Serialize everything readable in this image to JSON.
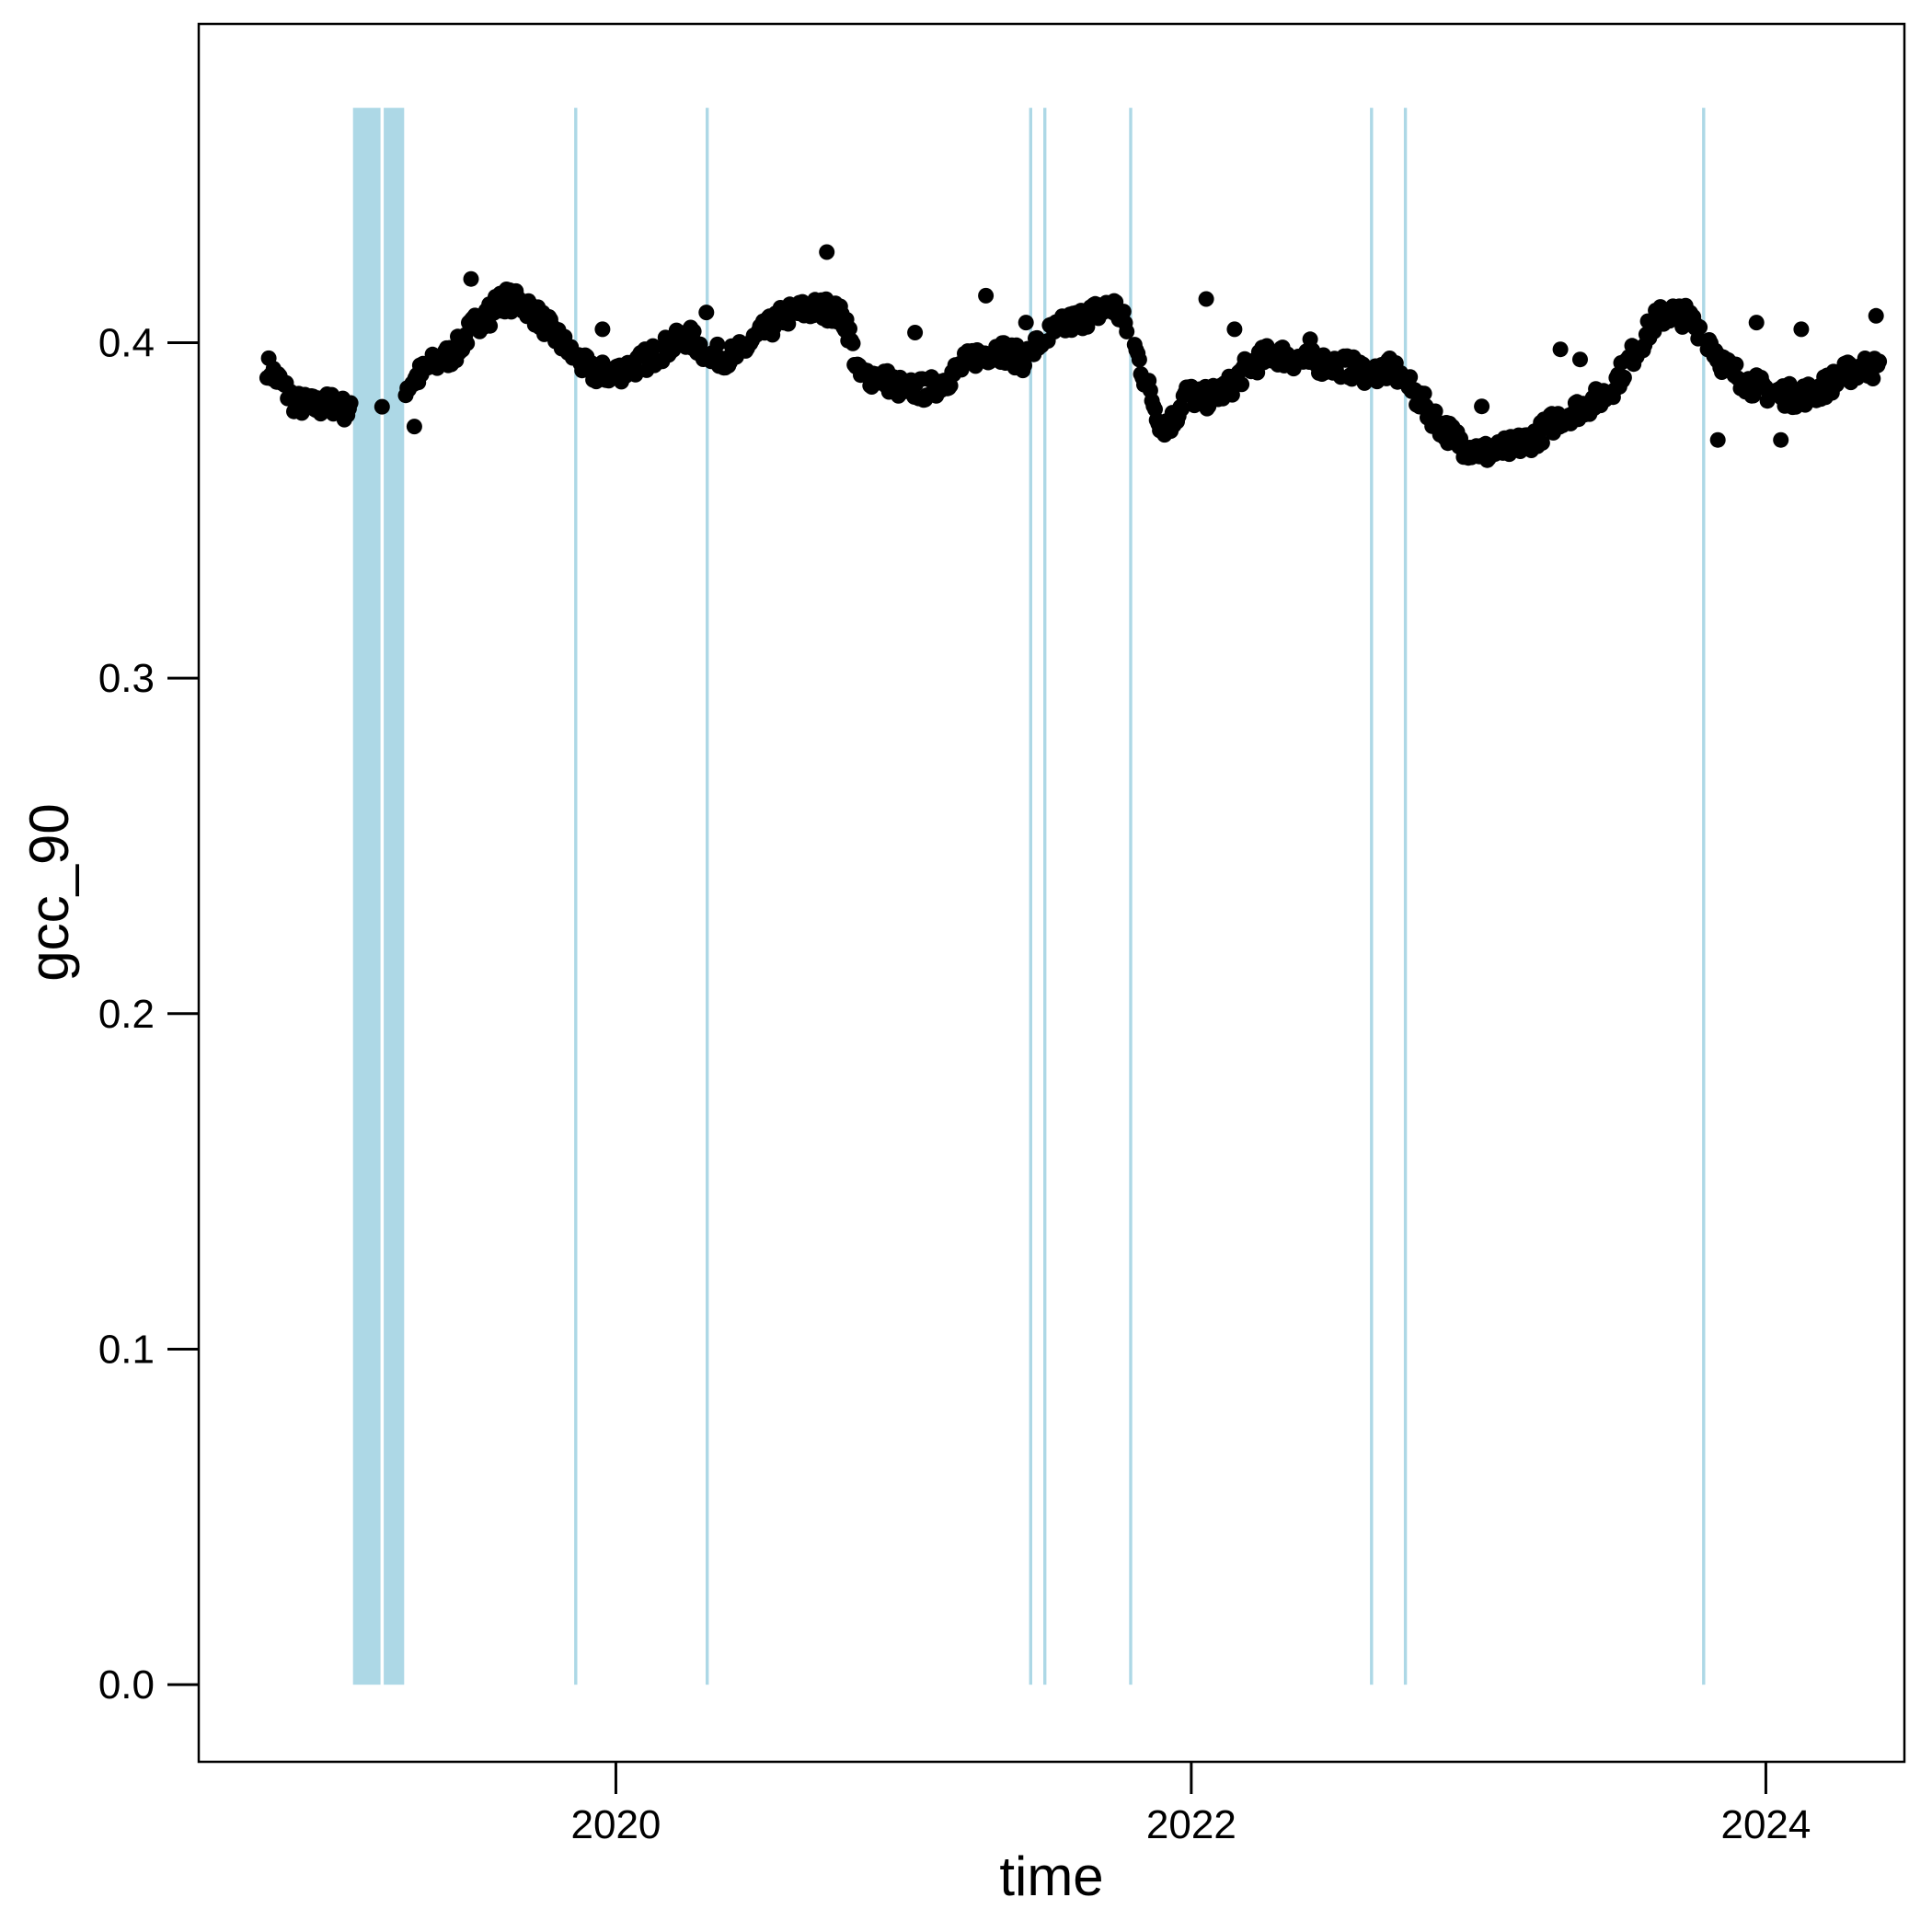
{
  "chart_data": {
    "type": "scatter",
    "title": "",
    "xlabel": "time",
    "ylabel": "gcc_90",
    "x_axis": {
      "scale": "date",
      "range": [
        "2018-07-20",
        "2024-06-25"
      ],
      "ticks": [
        "2020",
        "2022",
        "2024"
      ]
    },
    "y_axis": {
      "range": [
        -0.023,
        0.495
      ],
      "ticks": [
        "0.0",
        "0.1",
        "0.2",
        "0.3",
        "0.4"
      ]
    },
    "grid": false,
    "legend": "none",
    "colors": {
      "points": "#000000",
      "gap_bands": "#add8e6",
      "frame": "#000000"
    },
    "gap_bands": [
      [
        "2019-02-01",
        "2019-03-08"
      ],
      [
        "2019-03-12",
        "2019-04-07"
      ],
      [
        "2019-11-09",
        "2019-11-13"
      ],
      [
        "2020-04-24",
        "2020-04-28"
      ],
      [
        "2021-06-09",
        "2021-06-13"
      ],
      [
        "2021-06-27",
        "2021-07-01"
      ],
      [
        "2021-10-14",
        "2021-10-18"
      ],
      [
        "2022-08-16",
        "2022-08-20"
      ],
      [
        "2022-09-28",
        "2022-10-02"
      ],
      [
        "2023-10-12",
        "2023-10-16"
      ]
    ],
    "gap_band_y_range": [
      0.0,
      0.47
    ],
    "trend": [
      [
        "2018-10-15",
        0.393
      ],
      [
        "2018-11-01",
        0.388
      ],
      [
        "2018-11-20",
        0.382
      ],
      [
        "2018-12-15",
        0.381
      ],
      [
        "2019-01-10",
        0.382
      ],
      [
        "2019-01-28",
        0.379
      ],
      [
        "2019-03-15",
        0.381
      ],
      [
        "2019-04-15",
        0.388
      ],
      [
        "2019-05-10",
        0.393
      ],
      [
        "2019-06-10",
        0.397
      ],
      [
        "2019-07-01",
        0.404
      ],
      [
        "2019-07-25",
        0.41
      ],
      [
        "2019-08-15",
        0.413
      ],
      [
        "2019-09-10",
        0.411
      ],
      [
        "2019-10-05",
        0.405
      ],
      [
        "2019-11-01",
        0.398
      ],
      [
        "2019-12-01",
        0.391
      ],
      [
        "2020-01-01",
        0.391
      ],
      [
        "2020-02-01",
        0.394
      ],
      [
        "2020-03-01",
        0.398
      ],
      [
        "2020-04-01",
        0.402
      ],
      [
        "2020-05-01",
        0.396
      ],
      [
        "2020-06-01",
        0.396
      ],
      [
        "2020-07-01",
        0.402
      ],
      [
        "2020-08-01",
        0.408
      ],
      [
        "2020-09-01",
        0.41
      ],
      [
        "2020-10-01",
        0.41
      ],
      [
        "2020-10-20",
        0.406
      ],
      [
        "2020-11-05",
        0.39
      ],
      [
        "2020-12-01",
        0.39
      ],
      [
        "2021-01-01",
        0.386
      ],
      [
        "2021-02-01",
        0.386
      ],
      [
        "2021-03-01",
        0.39
      ],
      [
        "2021-04-01",
        0.396
      ],
      [
        "2021-05-01",
        0.398
      ],
      [
        "2021-06-01",
        0.395
      ],
      [
        "2021-07-01",
        0.402
      ],
      [
        "2021-08-01",
        0.406
      ],
      [
        "2021-09-01",
        0.409
      ],
      [
        "2021-09-25",
        0.411
      ],
      [
        "2021-10-15",
        0.403
      ],
      [
        "2021-11-05",
        0.388
      ],
      [
        "2021-11-25",
        0.375
      ],
      [
        "2021-12-10",
        0.377
      ],
      [
        "2021-12-25",
        0.385
      ],
      [
        "2022-01-15",
        0.383
      ],
      [
        "2022-02-15",
        0.386
      ],
      [
        "2022-03-15",
        0.393
      ],
      [
        "2022-04-15",
        0.397
      ],
      [
        "2022-05-15",
        0.395
      ],
      [
        "2022-06-15",
        0.394
      ],
      [
        "2022-07-15",
        0.393
      ],
      [
        "2022-08-15",
        0.391
      ],
      [
        "2022-09-15",
        0.392
      ],
      [
        "2022-10-15",
        0.384
      ],
      [
        "2022-11-15",
        0.375
      ],
      [
        "2022-12-15",
        0.369
      ],
      [
        "2023-01-15",
        0.367
      ],
      [
        "2023-02-15",
        0.369
      ],
      [
        "2023-03-15",
        0.372
      ],
      [
        "2023-04-15",
        0.378
      ],
      [
        "2023-05-15",
        0.381
      ],
      [
        "2023-06-15",
        0.385
      ],
      [
        "2023-07-15",
        0.396
      ],
      [
        "2023-08-15",
        0.407
      ],
      [
        "2023-09-01",
        0.409
      ],
      [
        "2023-09-20",
        0.408
      ],
      [
        "2023-10-15",
        0.403
      ],
      [
        "2023-11-10",
        0.393
      ],
      [
        "2023-12-10",
        0.388
      ],
      [
        "2024-01-10",
        0.385
      ],
      [
        "2024-02-10",
        0.384
      ],
      [
        "2024-03-10",
        0.386
      ],
      [
        "2024-04-05",
        0.39
      ],
      [
        "2024-05-05",
        0.393
      ],
      [
        "2024-05-25",
        0.392
      ]
    ],
    "outliers": [
      [
        "2020-09-25",
        0.427
      ],
      [
        "2019-07-01",
        0.419
      ],
      [
        "2021-04-15",
        0.414
      ],
      [
        "2022-01-20",
        0.413
      ],
      [
        "2024-05-20",
        0.408
      ],
      [
        "2023-12-20",
        0.406
      ],
      [
        "2024-02-15",
        0.404
      ],
      [
        "2022-02-25",
        0.404
      ],
      [
        "2019-12-15",
        0.404
      ],
      [
        "2021-01-15",
        0.403
      ],
      [
        "2019-07-25",
        0.405
      ],
      [
        "2023-04-15",
        0.398
      ],
      [
        "2019-04-20",
        0.375
      ],
      [
        "2023-11-01",
        0.371
      ],
      [
        "2024-01-20",
        0.371
      ],
      [
        "2023-01-05",
        0.381
      ],
      [
        "2020-04-25",
        0.409
      ],
      [
        "2021-06-05",
        0.406
      ],
      [
        "2022-06-01",
        0.401
      ],
      [
        "2023-05-10",
        0.395
      ]
    ]
  }
}
